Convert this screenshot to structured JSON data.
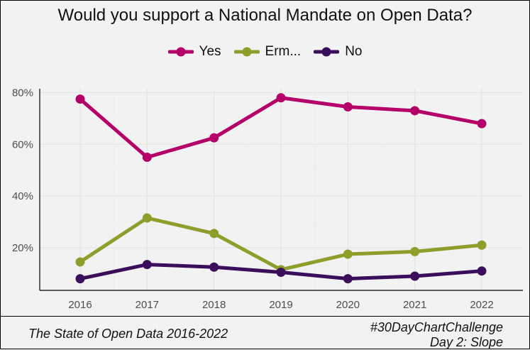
{
  "chart_data": {
    "type": "line",
    "title": "Would you support a National Mandate on Open Data?",
    "xlabel": "",
    "ylabel": "",
    "categories": [
      "2016",
      "2017",
      "2018",
      "2019",
      "2020",
      "2021",
      "2022"
    ],
    "ylim": [
      3.5,
      81.5
    ],
    "yticks": [
      20,
      40,
      60,
      80
    ],
    "ytick_labels": [
      "20%",
      "40%",
      "60%",
      "80%"
    ],
    "grid": true,
    "legend_position": "top",
    "series": [
      {
        "name": "Yes",
        "color": "#b5006a",
        "values": [
          77.5,
          55,
          62.5,
          78,
          74.5,
          73,
          68
        ]
      },
      {
        "name": "Erm...",
        "color": "#8f9e2a",
        "values": [
          14.5,
          31.5,
          25.5,
          11.5,
          17.5,
          18.5,
          21
        ]
      },
      {
        "name": "No",
        "color": "#3b0e5c",
        "values": [
          8,
          13.5,
          12.5,
          10.5,
          8,
          9,
          11
        ]
      }
    ]
  },
  "caption": {
    "source": "The State of Open Data 2016-2022",
    "tag_line1": "#30DayChartChallenge",
    "tag_line2": "Day 2: Slope"
  }
}
